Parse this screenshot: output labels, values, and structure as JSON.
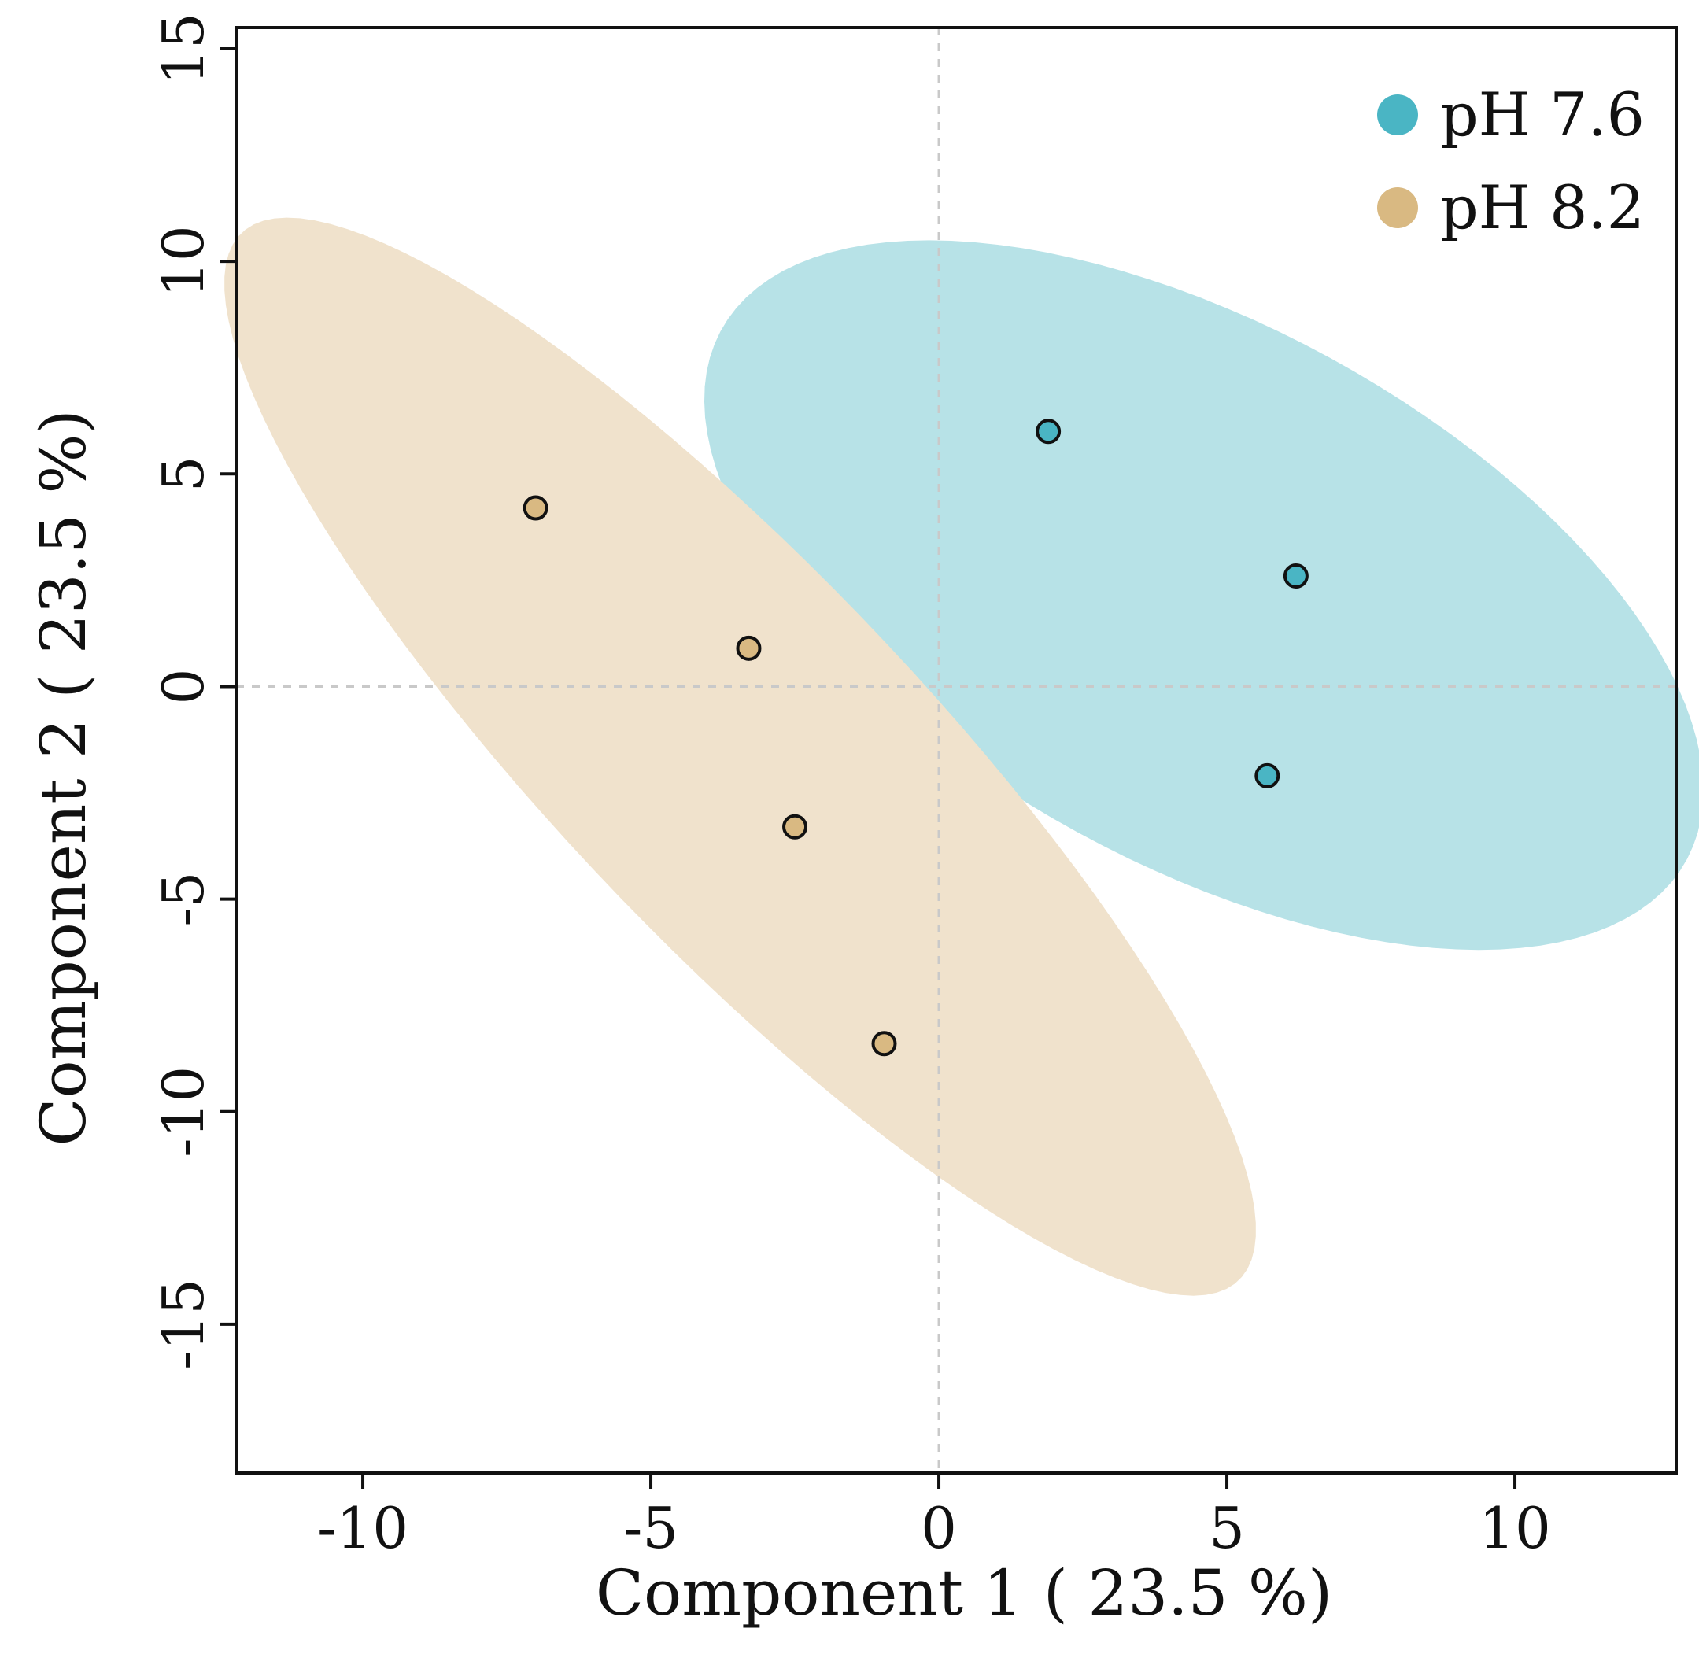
{
  "chart_data": {
    "type": "scatter",
    "xlabel": "Component 1 ( 23.5 %)",
    "ylabel": "Component 2 ( 23.5 %)",
    "xlim": [
      -12.2,
      12.8
    ],
    "ylim": [
      -18.5,
      15.5
    ],
    "xticks": [
      -10,
      -5,
      0,
      5,
      10
    ],
    "xtick_labels": [
      "-10",
      "-5",
      "0",
      "5",
      "10"
    ],
    "yticks": [
      -15,
      -10,
      -5,
      0,
      5,
      10,
      15
    ],
    "ytick_labels": [
      "-15",
      "-10",
      "-5",
      "0",
      "5",
      "10",
      "15"
    ],
    "reference_lines": {
      "x": 0,
      "y": 0,
      "style": "dashed"
    },
    "legend_position": "top-right",
    "series": [
      {
        "name": "pH 7.6",
        "color": "#4ab5c4",
        "ellipse_color": "#b7e2e7",
        "points": [
          [
            1.9,
            6.0
          ],
          [
            6.2,
            2.6
          ],
          [
            5.7,
            -2.1
          ]
        ],
        "ellipse": {
          "center": [
            4.6,
            2.15
          ],
          "semi_major": 10.6,
          "semi_minor": 5.7,
          "angle_deg": -43
        }
      },
      {
        "name": "pH 8.2",
        "color": "#d9b982",
        "ellipse_color": "#f0e2cc",
        "points": [
          [
            -7.0,
            4.2
          ],
          [
            -3.3,
            0.9
          ],
          [
            -2.5,
            -3.3
          ],
          [
            -0.95,
            -8.4
          ]
        ],
        "ellipse": {
          "center": [
            -3.45,
            -1.65
          ],
          "semi_major": 15.1,
          "semi_minor": 3.6,
          "angle_deg": -56
        }
      }
    ]
  }
}
